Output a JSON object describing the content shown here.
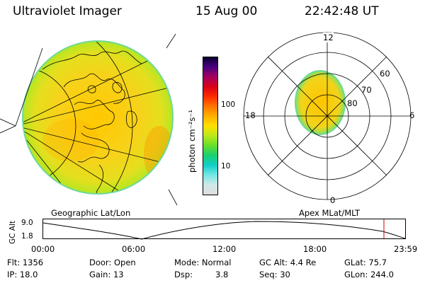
{
  "header": {
    "instrument": "Ultraviolet Imager",
    "date": "15 Aug 00",
    "time": "22:42:48 UT"
  },
  "colorbar": {
    "title": "photon cm⁻²s⁻¹",
    "ticks": [
      "100",
      "10"
    ],
    "colors": [
      "#dedede",
      "#cfe8e8",
      "#74e6e6",
      "#10cfc8",
      "#18d070",
      "#66de2a",
      "#bce81a",
      "#ffe000",
      "#ffb000",
      "#ff7400",
      "#ff2a00",
      "#d80018",
      "#a40060",
      "#4a0080",
      "#0a0030"
    ]
  },
  "polar_map": {
    "mlt_labels": [
      "12",
      "18",
      "6",
      "0"
    ],
    "mlat_labels": [
      "60",
      "70",
      "80"
    ]
  },
  "map_labels": {
    "left": "Geographic Lat/Lon",
    "right": "Apex MLat/MLT"
  },
  "timeline": {
    "ylabel": "GC Alt",
    "yticks": [
      "9.0",
      "1.8"
    ],
    "xticks": [
      "00:00",
      "06:00",
      "12:00",
      "18:00",
      "23:59"
    ]
  },
  "info": {
    "flt": "Flt: 1356",
    "ip": "IP: 18.0",
    "door": "Door: Open",
    "gain": "Gain: 13",
    "mode": "Mode: Normal",
    "dsp_label": "Dsp:",
    "dsp_value": "3.8",
    "gc_alt": "GC Alt: 4.4 Re",
    "seq": "Seq: 30",
    "glat": "GLat: 75.7",
    "glon": "GLon: 244.0"
  }
}
